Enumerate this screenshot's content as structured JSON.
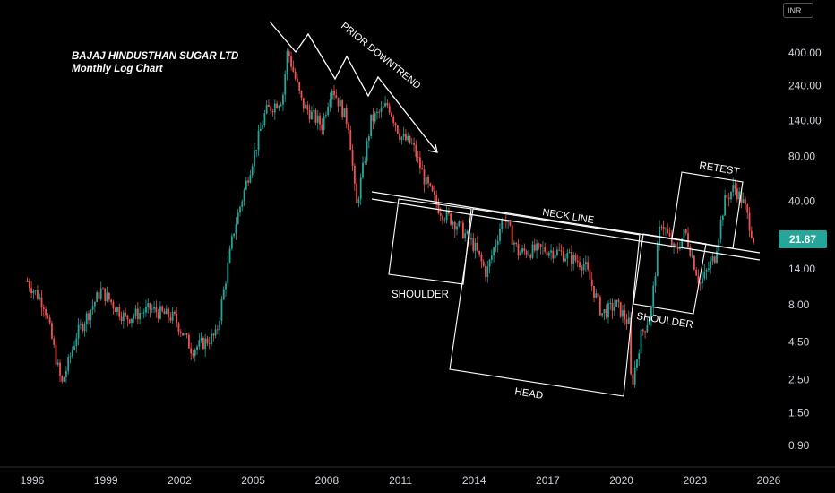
{
  "chart_data": {
    "type": "candlestick",
    "title": "BAJAJ HINDUSTHAN SUGAR LTD",
    "subtitle": "Monthly Log Chart",
    "currency": "INR",
    "last_price": "21.87",
    "y_scale": "log",
    "grid": false,
    "y_ticks": [
      "400.00",
      "240.00",
      "140.00",
      "80.00",
      "40.00",
      "24.00",
      "14.00",
      "8.00",
      "4.50",
      "2.50",
      "1.50",
      "0.90"
    ],
    "x_ticks": [
      "1996",
      "1999",
      "2002",
      "2005",
      "2008",
      "2011",
      "2014",
      "2017",
      "2020",
      "2023",
      "2026"
    ],
    "price_path": [
      {
        "year": 1995.8,
        "price": 11.5
      },
      {
        "year": 1996.5,
        "price": 8
      },
      {
        "year": 1997.2,
        "price": 2.3
      },
      {
        "year": 1997.8,
        "price": 5
      },
      {
        "year": 1998.8,
        "price": 10
      },
      {
        "year": 1999.8,
        "price": 6.5
      },
      {
        "year": 2000.8,
        "price": 7.5
      },
      {
        "year": 2001.8,
        "price": 6.5
      },
      {
        "year": 2002.5,
        "price": 4
      },
      {
        "year": 2003.5,
        "price": 5
      },
      {
        "year": 2004.2,
        "price": 25
      },
      {
        "year": 2004.8,
        "price": 60
      },
      {
        "year": 2005.5,
        "price": 160
      },
      {
        "year": 2006.2,
        "price": 200
      },
      {
        "year": 2006.4,
        "price": 420
      },
      {
        "year": 2007.0,
        "price": 180
      },
      {
        "year": 2007.8,
        "price": 130
      },
      {
        "year": 2008.2,
        "price": 240
      },
      {
        "year": 2008.9,
        "price": 130
      },
      {
        "year": 2009.2,
        "price": 36
      },
      {
        "year": 2009.8,
        "price": 140
      },
      {
        "year": 2010.5,
        "price": 180
      },
      {
        "year": 2011.0,
        "price": 110
      },
      {
        "year": 2011.5,
        "price": 95
      },
      {
        "year": 2012.0,
        "price": 55
      },
      {
        "year": 2012.6,
        "price": 35
      },
      {
        "year": 2013.3,
        "price": 28
      },
      {
        "year": 2014.0,
        "price": 20
      },
      {
        "year": 2014.5,
        "price": 13
      },
      {
        "year": 2015.2,
        "price": 32
      },
      {
        "year": 2015.8,
        "price": 18
      },
      {
        "year": 2016.8,
        "price": 19
      },
      {
        "year": 2017.5,
        "price": 18
      },
      {
        "year": 2018.5,
        "price": 15
      },
      {
        "year": 2019.2,
        "price": 7
      },
      {
        "year": 2019.8,
        "price": 8
      },
      {
        "year": 2020.3,
        "price": 6
      },
      {
        "year": 2020.4,
        "price": 2.2
      },
      {
        "year": 2020.8,
        "price": 5
      },
      {
        "year": 2021.2,
        "price": 7
      },
      {
        "year": 2021.6,
        "price": 30
      },
      {
        "year": 2022.2,
        "price": 18
      },
      {
        "year": 2022.6,
        "price": 25
      },
      {
        "year": 2023.2,
        "price": 11
      },
      {
        "year": 2023.8,
        "price": 17
      },
      {
        "year": 2024.2,
        "price": 40
      },
      {
        "year": 2024.6,
        "price": 50
      },
      {
        "year": 2025.0,
        "price": 38
      },
      {
        "year": 2025.4,
        "price": 21.87
      }
    ],
    "annotations": {
      "prior_downtrend": "PRIOR DOWNTREND",
      "neck_line": "NECK LINE",
      "left_shoulder": "SHOULDER",
      "head": "HEAD",
      "right_shoulder": "SHOULDER",
      "retest": "RETEST"
    },
    "colors": {
      "up": "#26a69a",
      "down": "#ef5350",
      "background": "#000000",
      "annotation": "#ffffff"
    }
  }
}
